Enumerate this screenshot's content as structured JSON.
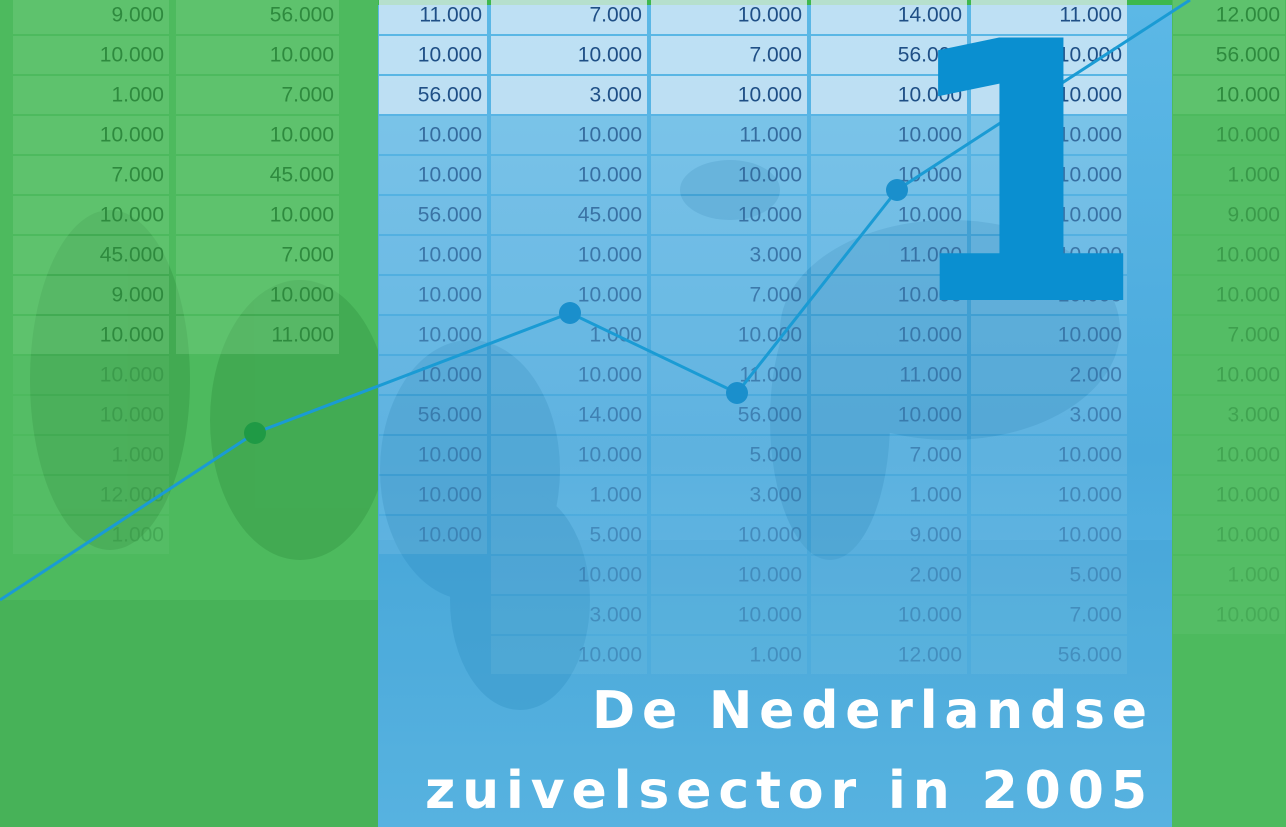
{
  "cover": {
    "chapter_number": "1",
    "title_lines": [
      "De Nederlandse",
      "zuivelsector in 2005"
    ],
    "left_sheet": {
      "columns": [
        [
          "9.000",
          "10.000",
          "1.000",
          "10.000",
          "7.000",
          "10.000",
          "45.000",
          "9.000",
          "10.000",
          "10.000",
          "10.000",
          "1.000",
          "12.000",
          "1.000"
        ],
        [
          "56.000",
          "10.000",
          "7.000",
          "10.000",
          "45.000",
          "10.000",
          "7.000",
          "10.000",
          "11.000"
        ]
      ]
    },
    "center_sheet": {
      "columns": [
        [
          "11.000",
          "10.000",
          "56.000",
          "10.000",
          "10.000",
          "56.000",
          "10.000",
          "10.000",
          "10.000",
          "10.000",
          "56.000",
          "10.000",
          "10.000",
          "10.000"
        ],
        [
          "7.000",
          "10.000",
          "3.000",
          "10.000",
          "10.000",
          "45.000",
          "10.000",
          "10.000",
          "1.000",
          "10.000",
          "14.000",
          "10.000",
          "1.000",
          "5.000",
          "10.000",
          "3.000",
          "10.000"
        ],
        [
          "10.000",
          "7.000",
          "10.000",
          "11.000",
          "10.000",
          "10.000",
          "3.000",
          "7.000",
          "10.000",
          "11.000",
          "56.000",
          "5.000",
          "3.000",
          "10.000",
          "10.000",
          "10.000",
          "1.000"
        ],
        [
          "14.000",
          "56.000",
          "10.000",
          "10.000",
          "10.000",
          "10.000",
          "11.000",
          "10.000",
          "10.000",
          "11.000",
          "10.000",
          "7.000",
          "1.000",
          "9.000",
          "2.000",
          "10.000",
          "12.000"
        ],
        [
          "11.000",
          "10.000",
          "10.000",
          "10.000",
          "10.000",
          "10.000",
          "10.000",
          "10.000",
          "10.000",
          "2.000",
          "3.000",
          "10.000",
          "10.000",
          "10.000",
          "5.000",
          "7.000",
          "56.000"
        ]
      ]
    },
    "right_sheet": {
      "columns": [
        [
          "12.000",
          "56.000",
          "10.000",
          "10.000",
          "1.000",
          "9.000",
          "10.000",
          "10.000",
          "7.000",
          "10.000",
          "3.000",
          "10.000",
          "10.000",
          "10.000",
          "1.000",
          "10.000"
        ]
      ]
    }
  }
}
